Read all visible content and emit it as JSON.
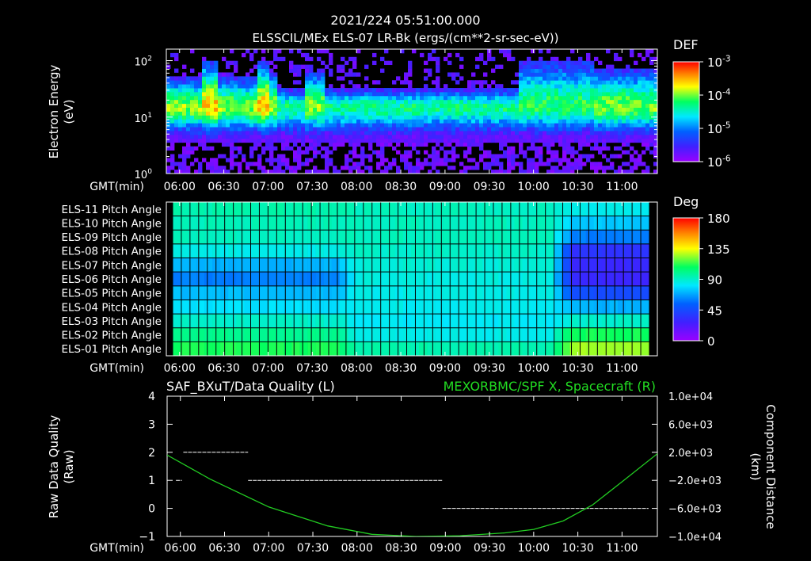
{
  "header": {
    "timestamp": "2021/224 05:51:00.000",
    "title": "ELSSCIL/MEx ELS-07 LR-Bk  (ergs/(cm**2-sr-sec-eV))"
  },
  "time_axis": {
    "label": "GMT(min)",
    "ticks": [
      "06:00",
      "06:30",
      "07:00",
      "07:30",
      "08:00",
      "08:30",
      "09:00",
      "09:30",
      "10:00",
      "10:30",
      "11:00"
    ],
    "tick_minutes": [
      360,
      390,
      420,
      450,
      480,
      510,
      540,
      570,
      600,
      630,
      660
    ],
    "range_minutes": [
      351,
      684
    ]
  },
  "colors": {
    "background": "#000000",
    "axes": "#ffffff",
    "spacecraft_line": "#22cc22",
    "spacecraft_label": "#22dd22"
  },
  "chart_data": [
    {
      "type": "heatmap",
      "name": "electron-spectrogram",
      "ylabel": "Electron Energy (eV)",
      "ylabel_line1": "Electron Energy",
      "ylabel_line2": "(eV)",
      "yscale": "log",
      "ylim": [
        1,
        160
      ],
      "yticks": [
        {
          "value": 1,
          "base": "10",
          "exp": "0"
        },
        {
          "value": 10,
          "base": "10",
          "exp": "1"
        },
        {
          "value": 100,
          "base": "10",
          "exp": "2"
        }
      ],
      "colorbar": {
        "label": "DEF",
        "scale": "log",
        "range": [
          1e-06,
          0.001
        ],
        "ticks": [
          {
            "base": "10",
            "exp": "-3"
          },
          {
            "base": "10",
            "exp": "-4"
          },
          {
            "base": "10",
            "exp": "-5"
          },
          {
            "base": "10",
            "exp": "-6"
          }
        ]
      },
      "band_profile": {
        "segments_minutes": [
          [
            351,
            420,
            "enhanced"
          ],
          [
            420,
            590,
            "moderate"
          ],
          [
            590,
            640,
            "enhanced-upper"
          ],
          [
            640,
            684,
            "enhanced"
          ]
        ],
        "peak_energy_eV": 15,
        "bursts_minutes": [
          380,
          419,
          452
        ]
      }
    },
    {
      "type": "heatmap",
      "name": "pitch-angle",
      "rows": [
        "ELS-11 Pitch Angle",
        "ELS-10 Pitch Angle",
        "ELS-09 Pitch Angle",
        "ELS-08 Pitch Angle",
        "ELS-07 Pitch Angle",
        "ELS-06 Pitch Angle",
        "ELS-05 Pitch Angle",
        "ELS-04 Pitch Angle",
        "ELS-03 Pitch Angle",
        "ELS-02 Pitch Angle",
        "ELS-01 Pitch Angle"
      ],
      "colorbar": {
        "label": "Deg",
        "range": [
          0,
          180
        ],
        "ticks": [
          "180",
          "135",
          "90",
          "45",
          "0"
        ],
        "tick_values": [
          180,
          135,
          90,
          45,
          0
        ]
      },
      "values_deg": [
        {
          "from": 351,
          "to": 475,
          "rows": [
            95,
            93,
            92,
            85,
            70,
            60,
            72,
            80,
            90,
            100,
            110
          ]
        },
        {
          "from": 475,
          "to": 620,
          "rows": [
            92,
            92,
            92,
            90,
            88,
            86,
            85,
            84,
            82,
            85,
            95
          ]
        },
        {
          "from": 620,
          "to": 680,
          "rows": [
            85,
            75,
            60,
            35,
            30,
            30,
            45,
            70,
            90,
            110,
            125
          ]
        }
      ]
    },
    {
      "type": "line",
      "name": "data-quality-and-spacecraft-x",
      "left_title": "SAF_BXuT/Data Quality (L)",
      "right_title": "MEXORBMC/SPF X, Spacecraft (R)",
      "ylabel_left": "Raw Data Quality (Raw)",
      "ylabel_left_line1": "Raw Data Quality",
      "ylabel_left_line2": "(Raw)",
      "ylabel_right": "Component Distance (km)",
      "ylabel_right_line1": "Component Distance",
      "ylabel_right_line2": "(km)",
      "ylim_left": [
        -1,
        4
      ],
      "yticks_left": [
        "4",
        "3",
        "2",
        "1",
        "0",
        "−1"
      ],
      "ytick_values_left": [
        4,
        3,
        2,
        1,
        0,
        -1
      ],
      "ylim_right": [
        -10000,
        10000
      ],
      "yticks_right": [
        "1.0e+04",
        "6.0e+03",
        "2.0e+03",
        "−2.0e+03",
        "−6.0e+03",
        "−1.0e+04"
      ],
      "ytick_values_right": [
        10000,
        6000,
        2000,
        -2000,
        -6000,
        -10000
      ],
      "series": [
        {
          "name": "Data Quality",
          "axis": "left",
          "style": "dashed",
          "segments": [
            {
              "x": [
                357,
                361
              ],
              "y": [
                1,
                1
              ]
            },
            {
              "x": [
                362,
                406
              ],
              "y": [
                2,
                2
              ]
            },
            {
              "x": [
                406,
                538
              ],
              "y": [
                1,
                1
              ]
            },
            {
              "x": [
                538,
                678
              ],
              "y": [
                0,
                0
              ]
            }
          ]
        },
        {
          "name": "SPF X Spacecraft",
          "axis": "right",
          "style": "solid",
          "x": [
            351,
            380,
            420,
            460,
            490,
            520,
            550,
            580,
            600,
            620,
            640,
            660,
            684
          ],
          "y": [
            1600,
            -1800,
            -5800,
            -8500,
            -9700,
            -10000,
            -9900,
            -9500,
            -9000,
            -7800,
            -5500,
            -2200,
            1800
          ]
        }
      ]
    }
  ]
}
